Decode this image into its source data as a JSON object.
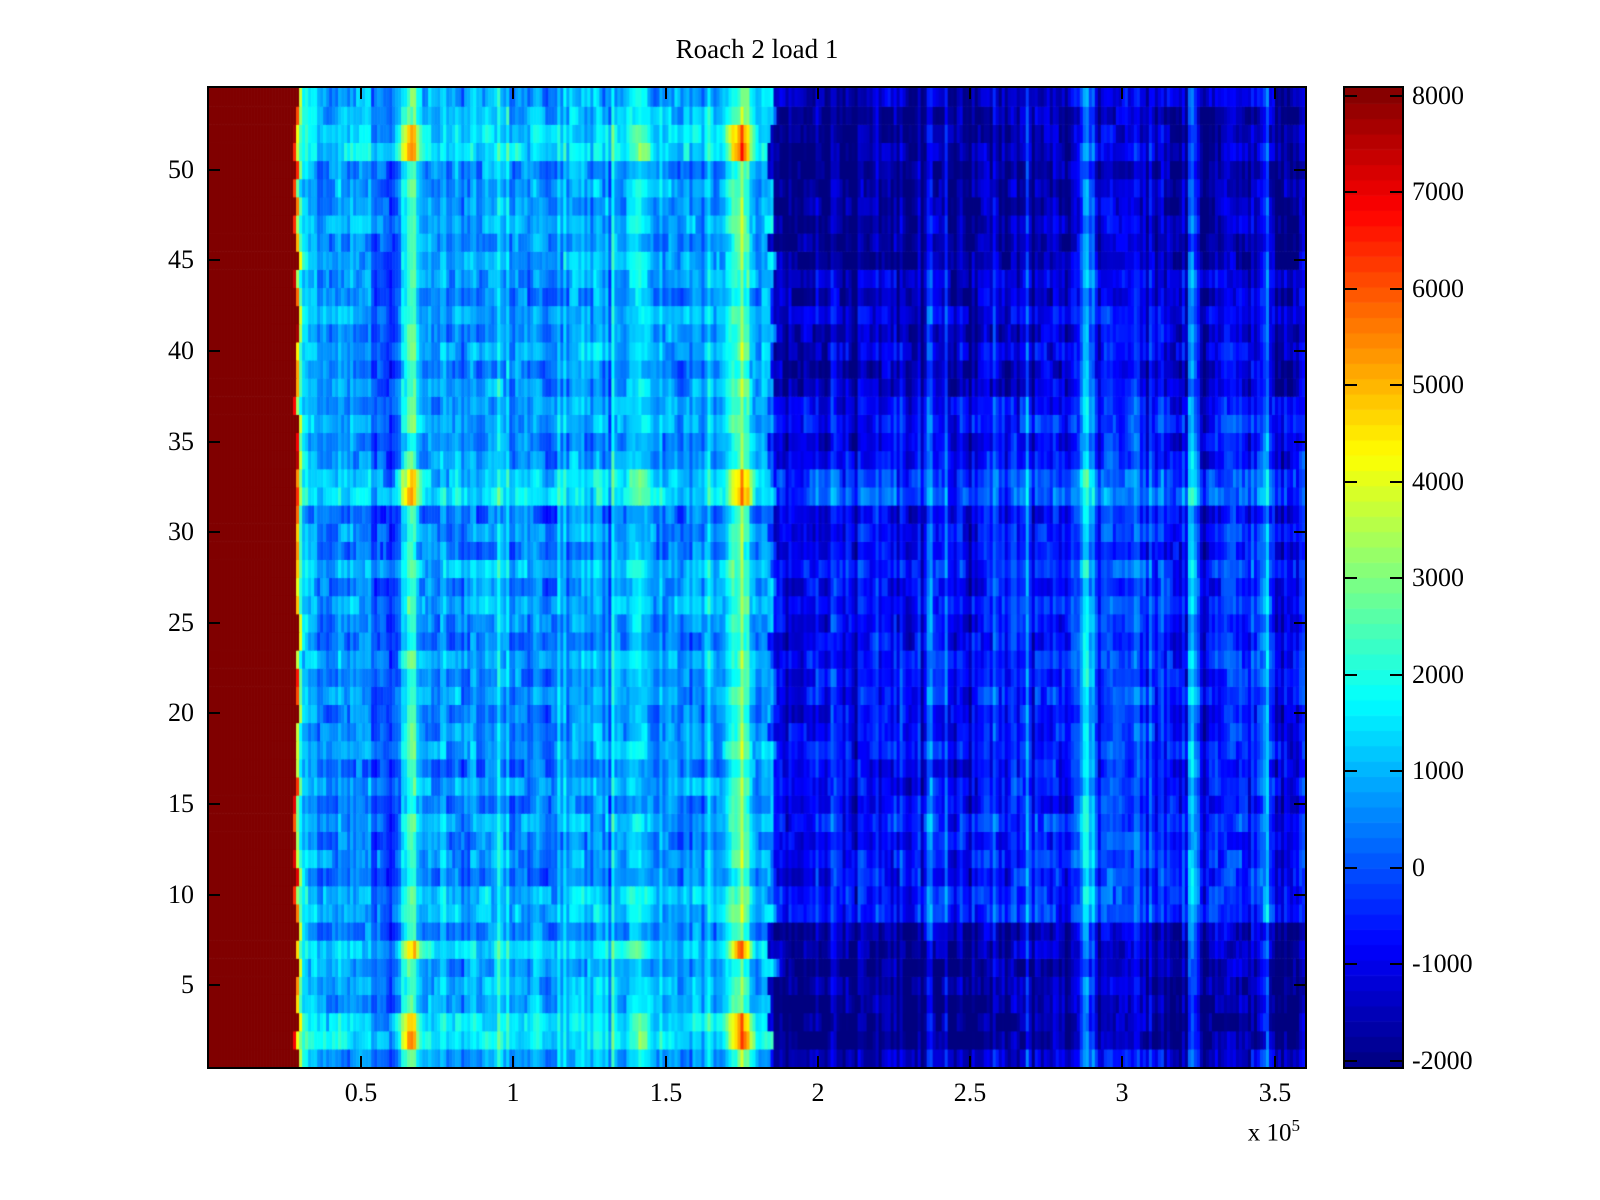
{
  "title": "Roach 2 load 1",
  "chart_data": {
    "type": "heatmap",
    "title": "Roach 2 load 1",
    "x_axis": {
      "range": [
        0,
        3.6
      ],
      "tick_values": [
        0.5,
        1,
        1.5,
        2,
        2.5,
        3,
        3.5
      ],
      "tick_labels": [
        "0.5",
        "1",
        "1.5",
        "2",
        "2.5",
        "3",
        "3.5"
      ],
      "multiplier": "x 10",
      "multiplier_exp": "5"
    },
    "y_axis": {
      "range": [
        0.5,
        54.5
      ],
      "tick_values": [
        5,
        10,
        15,
        20,
        25,
        30,
        35,
        40,
        45,
        50
      ],
      "tick_labels": [
        "5",
        "10",
        "15",
        "20",
        "25",
        "30",
        "35",
        "40",
        "45",
        "50"
      ]
    },
    "colorbar": {
      "colormap": "jet",
      "min": -2062,
      "max": 8080,
      "tick_values": [
        8000,
        7000,
        6000,
        5000,
        4000,
        3000,
        2000,
        1000,
        0,
        -1000,
        -2000
      ],
      "tick_labels": [
        "8000",
        "7000",
        "6000",
        "5000",
        "4000",
        "3000",
        "2000",
        "1000",
        "0",
        "-1000",
        "-2000"
      ]
    },
    "heatmap": {
      "n_rows": 54,
      "n_cols": 365,
      "x_max": 3.6,
      "saturated_value": 8000,
      "saturated_block_end": 0.285,
      "block_edge_jitter": 0.008,
      "transition_scale": 0.011,
      "region_boundary": 1.85,
      "boundary_jitter": 0.02,
      "row_mid_base": [
        700,
        1500,
        1400,
        800,
        900,
        700,
        1400,
        500,
        1000,
        1100,
        400,
        700,
        500,
        800,
        400,
        700,
        300,
        800,
        600,
        400,
        700,
        500,
        800,
        400,
        600,
        900,
        500,
        1000,
        400,
        600,
        200,
        1400,
        1200,
        700,
        500,
        800,
        600,
        700,
        500,
        800,
        600,
        900,
        500,
        700,
        800,
        600,
        900,
        700,
        800,
        600,
        1500,
        1300,
        1000,
        800
      ],
      "row_right_base": [
        -1200,
        -1800,
        -1800,
        -1700,
        -1600,
        -1700,
        -1500,
        -1400,
        -400,
        -300,
        -500,
        -400,
        -600,
        -300,
        -600,
        -500,
        -700,
        -400,
        -500,
        -600,
        -400,
        -500,
        -400,
        -600,
        -500,
        -300,
        -600,
        -300,
        -700,
        -500,
        -800,
        200,
        0,
        -600,
        -800,
        -500,
        -700,
        -1100,
        -1300,
        -1000,
        -1200,
        -900,
        -1300,
        -1100,
        -1500,
        -1600,
        -1400,
        -1600,
        -1500,
        -1700,
        -1400,
        -1500,
        -1600,
        -1200
      ],
      "bright_rows": [
        2,
        3,
        7,
        32,
        33,
        51,
        52
      ],
      "stripes": [
        {
          "x": 0.6,
          "w": 0.045,
          "amp": -800
        },
        {
          "x": 0.66,
          "w": 0.035,
          "amp": 1700,
          "boost": 2.0
        },
        {
          "x": 1.42,
          "w": 0.04,
          "amp": 1000,
          "boost": 1.7
        },
        {
          "x": 1.75,
          "w": 0.04,
          "amp": 1900,
          "boost": 2.1
        },
        {
          "x": 1.83,
          "w": 0.02,
          "amp": 900
        },
        {
          "x": 2.05,
          "w": 0.012,
          "amp": 700
        },
        {
          "x": 2.37,
          "w": 0.018,
          "amp": 1500
        },
        {
          "x": 2.88,
          "w": 0.02,
          "amp": 1700
        },
        {
          "x": 3.05,
          "w": 0.012,
          "amp": 700
        },
        {
          "x": 3.23,
          "w": 0.016,
          "amp": 1700
        },
        {
          "x": 3.47,
          "w": 0.02,
          "amp": 1500
        }
      ],
      "noise": {
        "seed": 1234,
        "col_amp": 420,
        "seg_amp": 520,
        "cell_amp": 160,
        "lowfreq_amp_mid": 140,
        "lowfreq_amp_right": 260,
        "bright_col_prob": 0.04,
        "dark_col_prob": 0.04
      }
    }
  }
}
